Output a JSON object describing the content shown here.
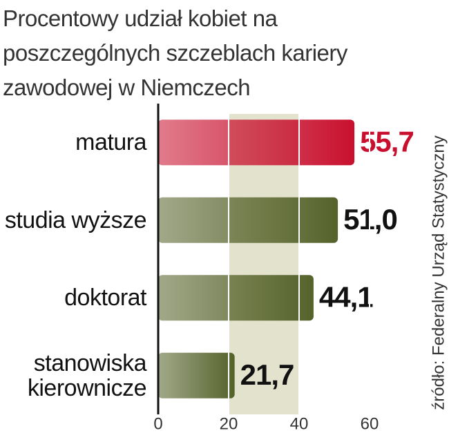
{
  "chart_data": {
    "type": "barh",
    "title": "Procentowy udział kobiet na poszczególnych szczeblach kariery zawodowej w Niemczech",
    "source": "źródło: Federalny Urząd Statystyczny",
    "categories": [
      "matura",
      "studia wyższe",
      "doktorat",
      "stanowiska kierownicze"
    ],
    "values": [
      55.7,
      51.0,
      44.1,
      21.7
    ],
    "value_labels": [
      "55,7",
      "51,0",
      "44,1",
      "21,7"
    ],
    "colors": [
      "#c8102e",
      "#55622a",
      "#55622a",
      "#55622a"
    ],
    "label_colors": [
      "#c8102e",
      "#111111",
      "#111111",
      "#111111"
    ],
    "xlim": [
      0,
      60
    ],
    "xticks": [
      0,
      20,
      40,
      60
    ],
    "grid": true
  }
}
